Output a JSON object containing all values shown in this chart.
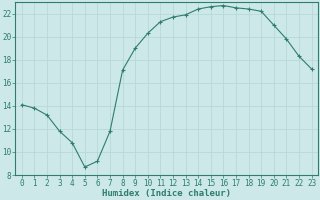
{
  "x": [
    0,
    1,
    2,
    3,
    4,
    5,
    6,
    7,
    8,
    9,
    10,
    11,
    12,
    13,
    14,
    15,
    16,
    17,
    18,
    19,
    20,
    21,
    22,
    23
  ],
  "y": [
    14.1,
    13.8,
    13.2,
    11.8,
    10.8,
    8.7,
    9.2,
    11.8,
    17.1,
    19.0,
    20.3,
    21.3,
    21.7,
    21.9,
    22.4,
    22.6,
    22.7,
    22.5,
    22.4,
    22.2,
    21.0,
    19.8,
    18.3,
    17.2
  ],
  "xlabel": "Humidex (Indice chaleur)",
  "ylim": [
    8,
    23
  ],
  "xlim": [
    -0.5,
    23.5
  ],
  "yticks": [
    8,
    10,
    12,
    14,
    16,
    18,
    20,
    22
  ],
  "xticks": [
    0,
    1,
    2,
    3,
    4,
    5,
    6,
    7,
    8,
    9,
    10,
    11,
    12,
    13,
    14,
    15,
    16,
    17,
    18,
    19,
    20,
    21,
    22,
    23
  ],
  "line_color": "#2e7d6e",
  "marker": "+",
  "bg_color": "#cce8e8",
  "grid_color": "#b8d8d8",
  "tick_color": "#2e7d6e",
  "label_fontsize": 5.5,
  "xlabel_fontsize": 6.5
}
